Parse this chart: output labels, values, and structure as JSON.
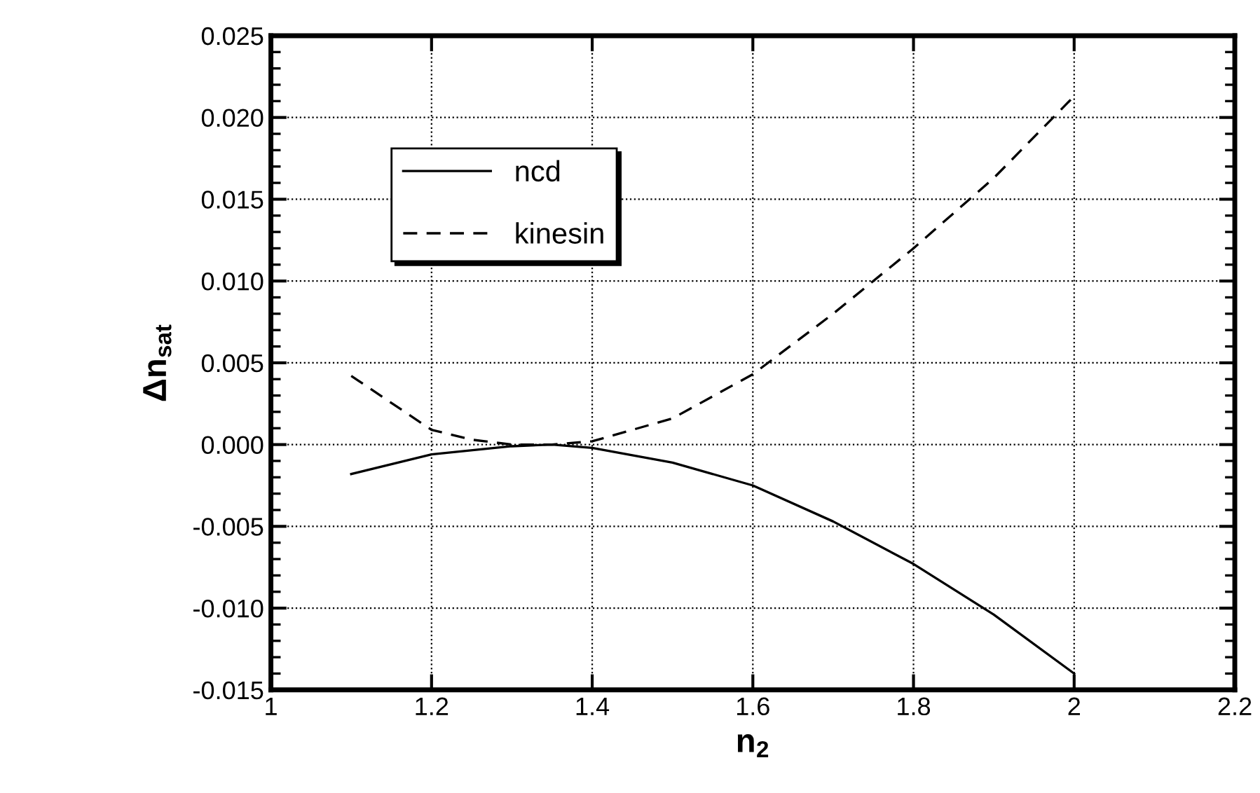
{
  "chart_data": {
    "type": "line",
    "xlabel": "n$_{2}$",
    "ylabel": "Δn$_{sat}$",
    "xlim": [
      1,
      2.2
    ],
    "xticks": [
      1,
      1.2,
      1.4,
      1.6,
      1.8,
      2,
      2.2
    ],
    "ylim": [
      -0.015,
      0.025
    ],
    "yticks": [
      {
        "value": -0.015,
        "label": "-0.015"
      },
      {
        "value": -0.01,
        "label": "-0.010"
      },
      {
        "value": -0.005,
        "label": "-0.005"
      },
      {
        "value": 0,
        "label": "0.000"
      },
      {
        "value": 0.005,
        "label": "0.005"
      },
      {
        "value": 0.01,
        "label": "0.010"
      },
      {
        "value": 0.015,
        "label": "0.015"
      },
      {
        "value": 0.02,
        "label": "0.020"
      },
      {
        "value": 0.025,
        "label": "0.025"
      }
    ],
    "grid": true,
    "legend": "top left",
    "series": [
      {
        "name": "ncd",
        "color": "#000000",
        "line_style": "solid",
        "x": [
          1.1,
          1.2,
          1.3,
          1.35,
          1.4,
          1.5,
          1.6,
          1.7,
          1.8,
          1.9,
          2.0
        ],
        "values": [
          -0.0018,
          -0.0006,
          -0.0001,
          0.0,
          -0.0002,
          -0.0011,
          -0.0025,
          -0.0047,
          -0.0073,
          -0.0104,
          -0.014
        ]
      },
      {
        "name": "kinesin",
        "color": "#000000",
        "line_style": "dashed",
        "x": [
          1.1,
          1.2,
          1.25,
          1.3,
          1.35,
          1.4,
          1.5,
          1.6,
          1.7,
          1.8,
          1.9,
          2.0
        ],
        "values": [
          0.0042,
          0.0009,
          0.0003,
          0.0,
          0.0,
          0.0002,
          0.0016,
          0.0043,
          0.008,
          0.012,
          0.0163,
          0.0213
        ]
      }
    ]
  }
}
